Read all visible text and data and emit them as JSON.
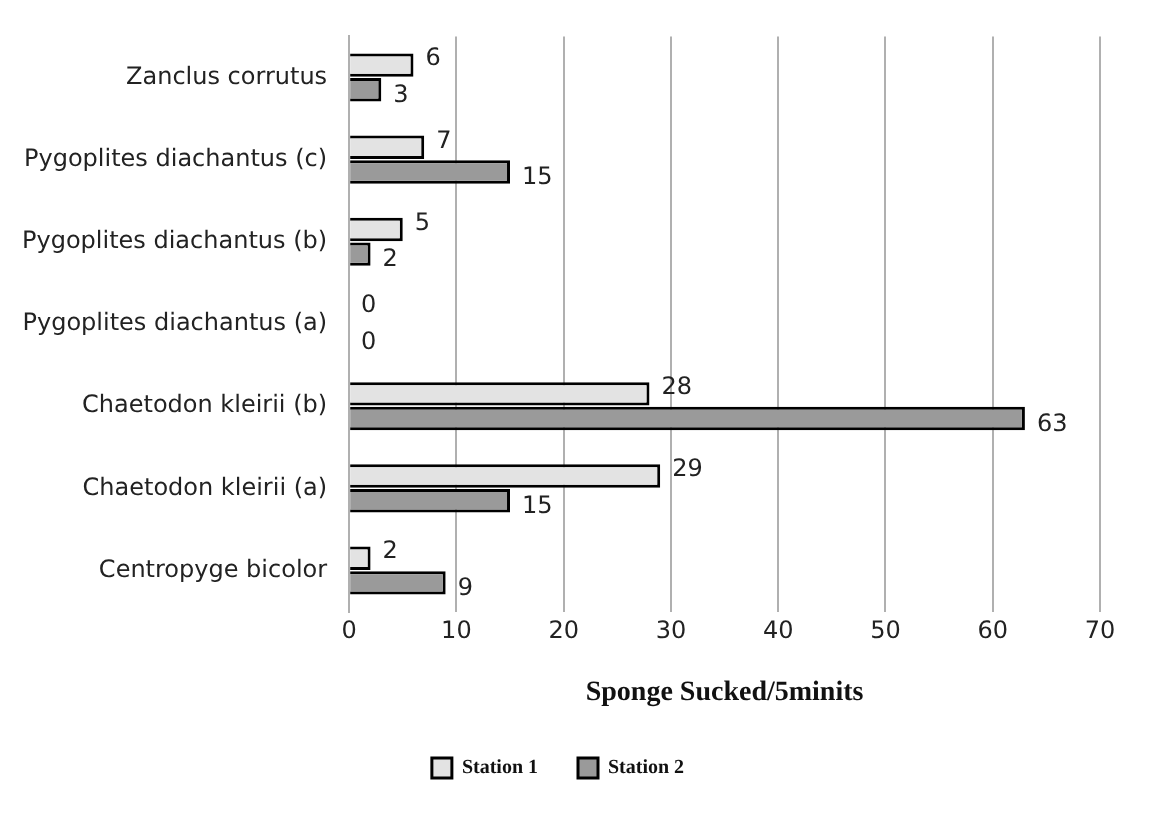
{
  "chart_data": {
    "type": "bar",
    "orientation": "horizontal",
    "xlabel": "Sponge Sucked/5minits",
    "categories": [
      "Zanclus corrutus",
      "Pygoplites diachantus (c)",
      "Pygoplites diachantus (b)",
      "Pygoplites diachantus (a)",
      "Chaetodon kleirii (b)",
      "Chaetodon kleirii (a)",
      "Centropyge bicolor"
    ],
    "series": [
      {
        "name": "Station 1",
        "color": "#e3e3e3",
        "values": [
          6,
          7,
          5,
          0,
          28,
          29,
          2
        ]
      },
      {
        "name": "Station 2",
        "color": "#9a9a9a",
        "values": [
          3,
          15,
          2,
          0,
          63,
          15,
          9
        ]
      }
    ],
    "xlim": [
      0,
      70
    ],
    "xticks": [
      0,
      10,
      20,
      30,
      40,
      50,
      60,
      70
    ],
    "grid": "x",
    "legend": "bottom",
    "data_labels": true
  }
}
